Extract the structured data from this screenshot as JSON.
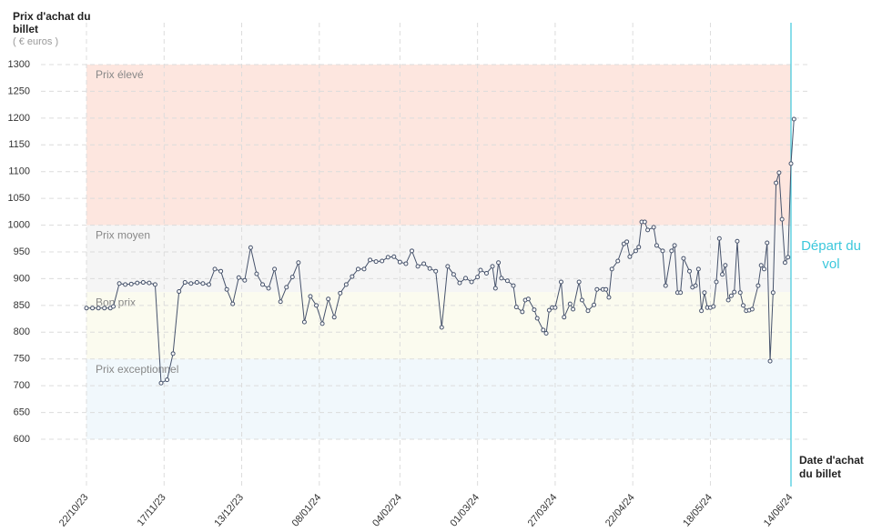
{
  "chart_data": {
    "type": "line",
    "y_title": "Prix d'achat du billet",
    "y_unit": "( € euros )",
    "x_title": "Date d'achat du billet",
    "departure_label": "Départ du vol",
    "color": "#46526b",
    "line_accent": "#3cc8dc",
    "ylim": [
      600,
      1300
    ],
    "yticks": [
      600,
      650,
      700,
      750,
      800,
      850,
      900,
      950,
      1000,
      1050,
      1100,
      1150,
      1200,
      1250,
      1300
    ],
    "xlim": [
      "22/10/23",
      "14/06/24"
    ],
    "xticks": [
      "22/10/23",
      "17/11/23",
      "13/12/23",
      "08/01/24",
      "04/02/24",
      "01/03/24",
      "27/03/24",
      "22/04/24",
      "18/05/24",
      "14/06/24"
    ],
    "grid": true,
    "bands": [
      {
        "label": "Prix élevé",
        "from": 1000,
        "to": 1300,
        "color": "#fde6df"
      },
      {
        "label": "Prix moyen",
        "from": 875,
        "to": 1000,
        "color": "#f5f5f5"
      },
      {
        "label": "Bon prix",
        "from": 750,
        "to": 875,
        "color": "#fbfbef"
      },
      {
        "label": "Prix exceptionnel",
        "from": 600,
        "to": 750,
        "color": "#f1f8fc"
      }
    ],
    "x": [
      "22/10/23",
      "24/10/23",
      "26/10/23",
      "28/10/23",
      "30/10/23",
      "31/10/23",
      "02/11/23",
      "04/11/23",
      "06/11/23",
      "08/11/23",
      "10/11/23",
      "12/11/23",
      "14/11/23",
      "16/11/23",
      "18/11/23",
      "20/11/23",
      "22/11/23",
      "24/11/23",
      "26/11/23",
      "28/11/23",
      "30/11/23",
      "02/12/23",
      "04/12/23",
      "06/12/23",
      "08/12/23",
      "10/12/23",
      "12/12/23",
      "14/12/23",
      "16/12/23",
      "18/12/23",
      "20/12/23",
      "22/12/23",
      "24/12/23",
      "26/12/23",
      "28/12/23",
      "30/12/23",
      "01/01/24",
      "03/01/24",
      "05/01/24",
      "07/01/24",
      "09/01/24",
      "11/01/24",
      "13/01/24",
      "15/01/24",
      "17/01/24",
      "19/01/24",
      "21/01/24",
      "23/01/24",
      "25/01/24",
      "27/01/24",
      "29/01/24",
      "31/01/24",
      "02/02/24",
      "04/02/24",
      "06/02/24",
      "08/02/24",
      "10/02/24",
      "12/02/24",
      "14/02/24",
      "16/02/24",
      "18/02/24",
      "20/02/24",
      "22/02/24",
      "24/02/24",
      "26/02/24",
      "28/02/24",
      "01/03/24",
      "02/03/24",
      "04/03/24",
      "06/03/24",
      "07/03/24",
      "08/03/24",
      "09/03/24",
      "11/03/24",
      "13/03/24",
      "14/03/24",
      "16/03/24",
      "17/03/24",
      "18/03/24",
      "20/03/24",
      "21/03/24",
      "23/03/24",
      "24/03/24",
      "25/03/24",
      "26/03/24",
      "27/03/24",
      "29/03/24",
      "30/03/24",
      "01/04/24",
      "02/04/24",
      "04/04/24",
      "05/04/24",
      "07/04/24",
      "09/04/24",
      "10/04/24",
      "12/04/24",
      "13/04/24",
      "14/04/24",
      "15/04/24",
      "17/04/24",
      "19/04/24",
      "20/04/24",
      "21/04/24",
      "23/04/24",
      "24/04/24",
      "25/04/24",
      "26/04/24",
      "27/04/24",
      "29/04/24",
      "30/04/24",
      "02/05/24",
      "03/05/24",
      "05/05/24",
      "06/05/24",
      "07/05/24",
      "08/05/24",
      "09/05/24",
      "11/05/24",
      "12/05/24",
      "13/05/24",
      "14/05/24",
      "15/05/24",
      "16/05/24",
      "17/05/24",
      "18/05/24",
      "19/05/24",
      "20/05/24",
      "21/05/24",
      "22/05/24",
      "23/05/24",
      "24/05/24",
      "25/05/24",
      "26/05/24",
      "27/05/24",
      "28/05/24",
      "29/05/24",
      "30/05/24",
      "31/05/24",
      "01/06/24",
      "03/06/24",
      "04/06/24",
      "05/06/24",
      "06/06/24",
      "07/06/24",
      "08/06/24",
      "09/06/24",
      "10/06/24",
      "11/06/24",
      "12/06/24",
      "13/06/24",
      "14/06/24",
      "15/06/24"
    ],
    "values": [
      845,
      845,
      845,
      845,
      845,
      848,
      891,
      889,
      890,
      892,
      893,
      892,
      889,
      705,
      711,
      760,
      876,
      893,
      891,
      893,
      891,
      889,
      918,
      914,
      880,
      853,
      902,
      897,
      958,
      909,
      889,
      882,
      918,
      857,
      884,
      903,
      930,
      819,
      867,
      850,
      816,
      862,
      828,
      873,
      889,
      904,
      918,
      918,
      935,
      932,
      933,
      940,
      941,
      931,
      928,
      952,
      923,
      928,
      919,
      914,
      809,
      923,
      908,
      892,
      901,
      894,
      903,
      916,
      910,
      923,
      882,
      930,
      901,
      896,
      887,
      847,
      838,
      860,
      862,
      842,
      826,
      804,
      798,
      841,
      846,
      846,
      894,
      828,
      853,
      843,
      894,
      860,
      840,
      851,
      880,
      880,
      880,
      865,
      918,
      933,
      965,
      969,
      941,
      952,
      959,
      1006,
      1006,
      991,
      996,
      962,
      952,
      887,
      952,
      962,
      874,
      874,
      938,
      914,
      884,
      887,
      918,
      840,
      874,
      846,
      846,
      848,
      894,
      975,
      908,
      925,
      860,
      868,
      875,
      970,
      874,
      850,
      840,
      841,
      843,
      887,
      925,
      918,
      967,
      746,
      874,
      1079,
      1098,
      1011,
      930,
      940,
      1115,
      1198
    ]
  }
}
